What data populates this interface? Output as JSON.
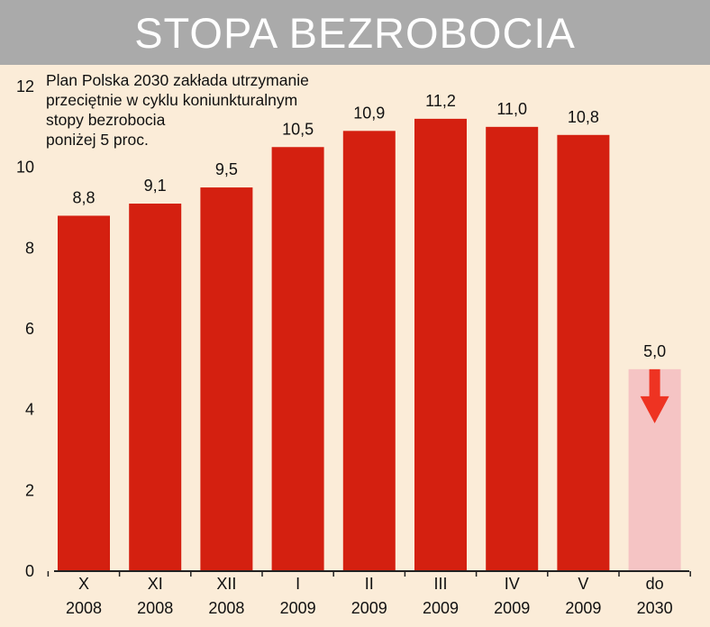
{
  "title": "STOPA BEZROBOCIA",
  "note": [
    "Plan Polska 2030 zakłada utrzymanie",
    "przeciętnie w cyklu koniunkturalnym",
    "stopy bezrobocia",
    "poniżej 5 proc."
  ],
  "colors": {
    "bar": "#d42010",
    "target_bar": "#f5c4c4",
    "arrow": "#ee3322",
    "title_bg": "#aaaaaa",
    "background": "#fbecd8"
  },
  "chart_data": {
    "type": "bar",
    "title": "STOPA BEZROBOCIA",
    "ylim": [
      0,
      12
    ],
    "yticks": [
      "0",
      "2",
      "4",
      "6",
      "8",
      "10",
      "12"
    ],
    "categories": [
      [
        "X",
        "2008"
      ],
      [
        "XI",
        "2008"
      ],
      [
        "XII",
        "2008"
      ],
      [
        "I",
        "2009"
      ],
      [
        "II",
        "2009"
      ],
      [
        "III",
        "2009"
      ],
      [
        "IV",
        "2009"
      ],
      [
        "V",
        "2009"
      ],
      [
        "do",
        "2030"
      ]
    ],
    "values": [
      8.8,
      9.1,
      9.5,
      10.5,
      10.9,
      11.2,
      11.0,
      10.8,
      5.0
    ],
    "value_labels": [
      "8,8",
      "9,1",
      "9,5",
      "10,5",
      "10,9",
      "11,2",
      "11,0",
      "10,8",
      "5,0"
    ],
    "target_index": 8,
    "target_marker": "down-arrow-icon",
    "grid": false,
    "legend": "none"
  }
}
